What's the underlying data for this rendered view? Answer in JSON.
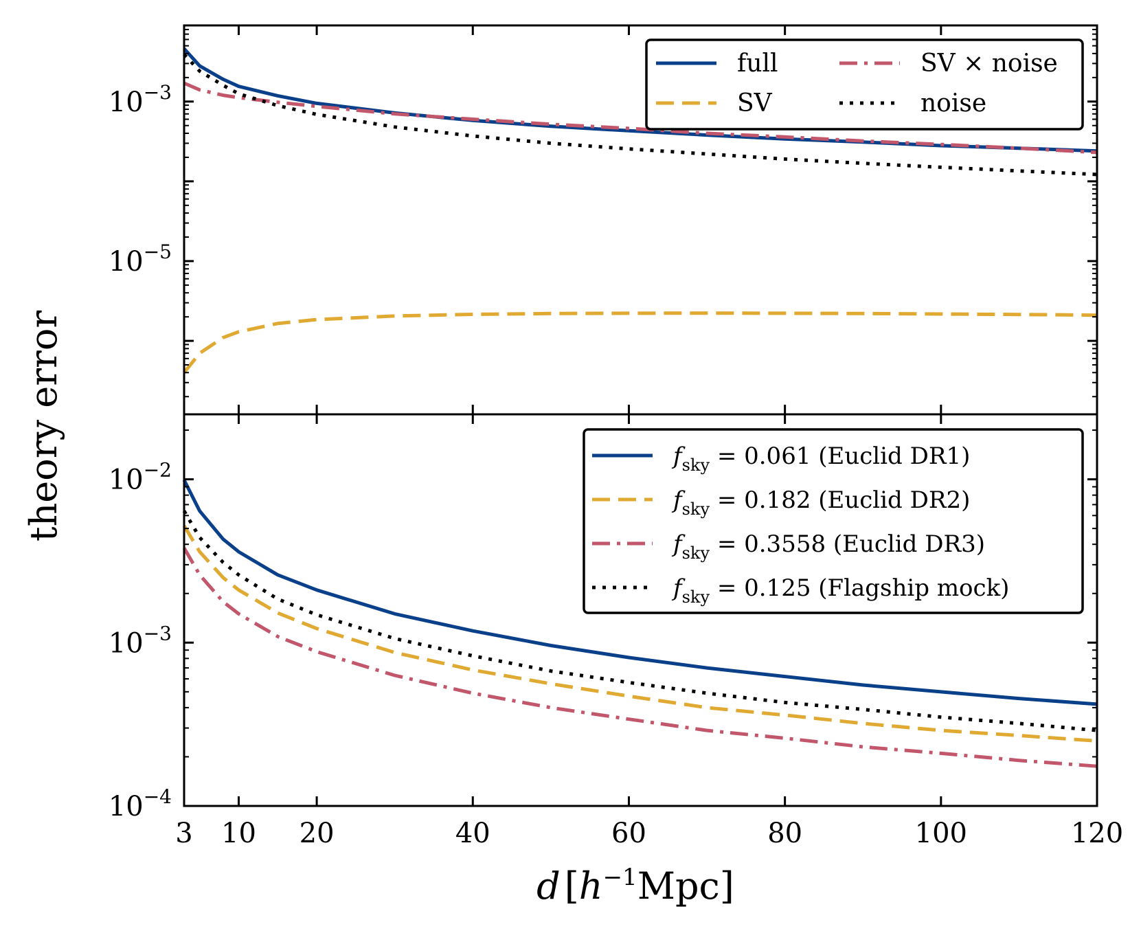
{
  "chart_data": {
    "type": "line",
    "shared_x": {
      "label": "d [h^-1 Mpc]",
      "label_parts": {
        "symbol": "d",
        "h": "h",
        "exp": "−1",
        "unit": "Mpc"
      },
      "xlim": [
        3,
        120
      ],
      "ticks": [
        3,
        10,
        20,
        40,
        60,
        80,
        100,
        120
      ],
      "tick_labels": [
        "3",
        "10",
        "20",
        "40",
        "60",
        "80",
        "100",
        "120"
      ],
      "x": [
        3,
        5,
        8,
        10,
        15,
        20,
        30,
        40,
        50,
        60,
        70,
        80,
        90,
        100,
        110,
        120
      ]
    },
    "shared_ylabel": "theory error",
    "panels": [
      {
        "name": "top",
        "yscale": "log",
        "ylim": [
          1.2e-07,
          0.009
        ],
        "major_ticks": [
          0.001,
          1e-05
        ],
        "major_tick_labels": [
          {
            "base": "10",
            "exp": "−3"
          },
          {
            "base": "10",
            "exp": "−5"
          }
        ],
        "legend_location": "upper right",
        "legend_columns": 2,
        "series": [
          {
            "name": "full",
            "color": "#0a3f8a",
            "style": "solid",
            "values": [
              0.0046,
              0.0028,
              0.0019,
              0.00155,
              0.00118,
              0.00095,
              0.00072,
              0.00058,
              0.00049,
              0.00043,
              0.00038,
              0.00034,
              0.00031,
              0.00028,
              0.00026,
              0.00024
            ]
          },
          {
            "name": "SV",
            "color": "#e0a932",
            "style": "dashed",
            "values": [
              4e-07,
              7e-07,
              1.1e-06,
              1.3e-06,
              1.65e-06,
              1.85e-06,
              2.05e-06,
              2.15e-06,
              2.2e-06,
              2.22e-06,
              2.23e-06,
              2.22e-06,
              2.2e-06,
              2.17e-06,
              2.14e-06,
              2.1e-06
            ]
          },
          {
            "name": "SV × noise",
            "color": "#c2566b",
            "style": "dashdot",
            "values": [
              0.0017,
              0.0014,
              0.0012,
              0.00112,
              0.00098,
              0.00087,
              0.0007,
              0.0006,
              0.00052,
              0.00046,
              0.0004,
              0.00036,
              0.00032,
              0.00029,
              0.00026,
              0.00023
            ]
          },
          {
            "name": "noise",
            "color": "#000000",
            "style": "dotted",
            "values": [
              0.0039,
              0.0024,
              0.0016,
              0.00125,
              0.00089,
              0.00069,
              0.00048,
              0.00037,
              0.0003,
              0.000255,
              0.00022,
              0.00019,
              0.000168,
              0.00015,
              0.000135,
              0.000122
            ]
          }
        ]
      },
      {
        "name": "bottom",
        "yscale": "log",
        "ylim": [
          0.0001,
          0.025
        ],
        "major_ticks": [
          0.01,
          0.001,
          0.0001
        ],
        "major_tick_labels": [
          {
            "base": "10",
            "exp": "−2"
          },
          {
            "base": "10",
            "exp": "−3"
          },
          {
            "base": "10",
            "exp": "−4"
          }
        ],
        "legend_location": "upper right",
        "legend_columns": 1,
        "series": [
          {
            "name": "f_sky = 0.061 (Euclid DR1)",
            "label_parts": {
              "f": "f",
              "sub": "sky",
              "rest": " = 0.061 (Euclid DR1)"
            },
            "color": "#0a3f8a",
            "style": "solid",
            "values": [
              0.0099,
              0.0064,
              0.0043,
              0.0036,
              0.0026,
              0.0021,
              0.0015,
              0.00118,
              0.00096,
              0.00081,
              0.0007,
              0.00062,
              0.00055,
              0.0005,
              0.000455,
              0.00042
            ]
          },
          {
            "name": "f_sky = 0.182 (Euclid DR2)",
            "label_parts": {
              "f": "f",
              "sub": "sky",
              "rest": " = 0.182 (Euclid DR2)"
            },
            "color": "#e0a932",
            "style": "dashed",
            "values": [
              0.0052,
              0.0036,
              0.0025,
              0.0021,
              0.00152,
              0.00122,
              0.00087,
              0.00068,
              0.00056,
              0.00047,
              0.0004,
              0.00036,
              0.00032,
              0.00029,
              0.00027,
              0.00025
            ]
          },
          {
            "name": "f_sky = 0.3558 (Euclid DR3)",
            "label_parts": {
              "f": "f",
              "sub": "sky",
              "rest": " = 0.3558 (Euclid DR3)"
            },
            "color": "#c2566b",
            "style": "dashdot",
            "values": [
              0.0038,
              0.0026,
              0.00178,
              0.0015,
              0.00109,
              0.00088,
              0.00063,
              0.00049,
              0.0004,
              0.00034,
              0.00029,
              0.00026,
              0.00023,
              0.00021,
              0.00019,
              0.000175
            ]
          },
          {
            "name": "f_sky = 0.125 (Flagship mock)",
            "label_parts": {
              "f": "f",
              "sub": "sky",
              "rest": " = 0.125 (Flagship mock)"
            },
            "color": "#000000",
            "style": "dotted",
            "values": [
              0.0064,
              0.0044,
              0.0031,
              0.0026,
              0.00185,
              0.00148,
              0.00106,
              0.00083,
              0.00067,
              0.00057,
              0.00049,
              0.00043,
              0.00039,
              0.00035,
              0.00032,
              0.00029
            ]
          }
        ]
      }
    ]
  }
}
